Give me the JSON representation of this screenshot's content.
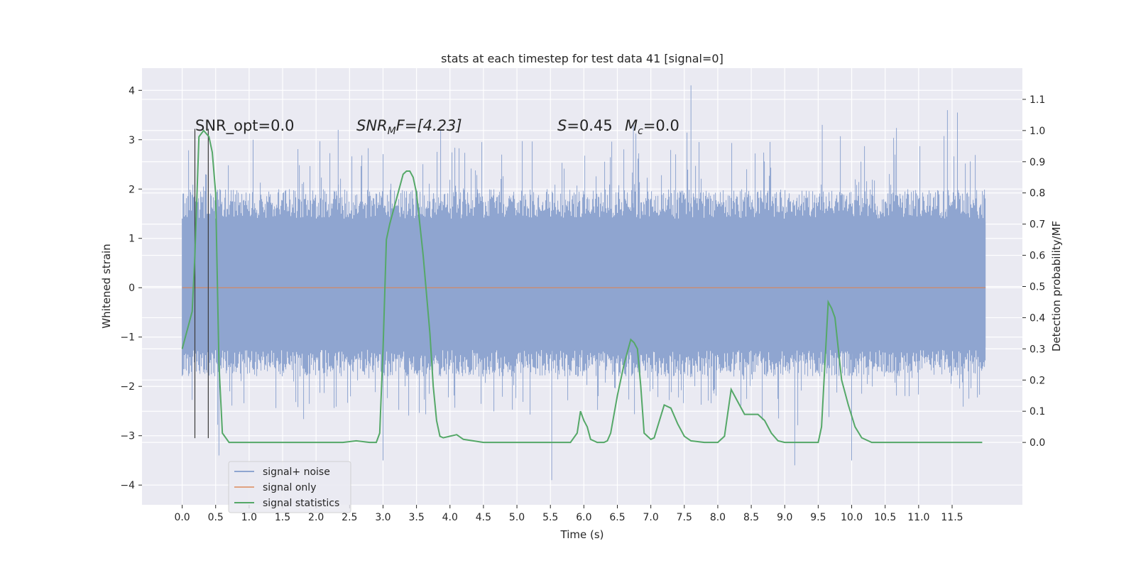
{
  "chart_data": {
    "type": "line",
    "title": "stats at each timestep for test data 41 [signal=0]",
    "xlabel": "Time (s)",
    "ylabel": "Whitened strain",
    "ylabel_right": "Detection probability/MF",
    "xlim": [
      -0.6,
      12.55
    ],
    "ylim": [
      -4.4,
      4.45
    ],
    "ylim_right": [
      -0.2,
      1.2
    ],
    "x_ticks": [
      "0.0",
      "0.5",
      "1.0",
      "1.5",
      "2.0",
      "2.5",
      "3.0",
      "3.5",
      "4.0",
      "4.5",
      "5.0",
      "5.5",
      "6.0",
      "6.5",
      "7.0",
      "7.5",
      "8.0",
      "8.5",
      "9.0",
      "9.5",
      "10.0",
      "10.5",
      "11.0",
      "11.5"
    ],
    "y_ticks": [
      "−4",
      "−3",
      "−2",
      "−1",
      "0",
      "1",
      "2",
      "3",
      "4"
    ],
    "y_ticks_right": [
      "0.0",
      "0.1",
      "0.2",
      "0.3",
      "0.4",
      "0.5",
      "0.6",
      "0.7",
      "0.8",
      "0.9",
      "1.0",
      "1.1"
    ],
    "grid": true,
    "legend_position": "lower-left",
    "annotations": {
      "snr_opt": "SNR_opt=0.0",
      "snr_mf_main": "SNR",
      "snr_mf_sub": "M",
      "snr_mf_rest": "F=[4.23]",
      "s_main": "S",
      "s_rest": "=0.45",
      "mc_main": "M",
      "mc_sub": "c",
      "mc_rest": "=0.0"
    },
    "vertical_lines_x": [
      0.19,
      0.39
    ],
    "vertical_lines_range": [
      -3.05,
      3.22
    ],
    "series": [
      {
        "name": "signal+ noise",
        "color": "#8fa5d0",
        "x_range": [
          0.0,
          12.0
        ],
        "band_upper": 2.0,
        "band_lower": -1.8,
        "note_spikes": "dense noise, peaks up to 4.1 at t=7.6 and down to -3.9 at t=5.5"
      },
      {
        "name": "signal only",
        "color": "#dd8452",
        "x": [
          0.0,
          12.0
        ],
        "y": [
          0.0,
          0.0
        ]
      },
      {
        "name": "signal statistics",
        "color": "#55a868",
        "axis": "right",
        "x": [
          0.0,
          0.1,
          0.15,
          0.19,
          0.25,
          0.32,
          0.4,
          0.45,
          0.5,
          0.55,
          0.6,
          0.7,
          1.0,
          2.0,
          2.4,
          2.6,
          2.8,
          2.9,
          2.95,
          3.0,
          3.05,
          3.1,
          3.2,
          3.3,
          3.35,
          3.4,
          3.45,
          3.5,
          3.55,
          3.6,
          3.7,
          3.75,
          3.8,
          3.85,
          3.9,
          4.0,
          4.1,
          4.2,
          4.5,
          5.0,
          5.5,
          5.8,
          5.9,
          5.95,
          6.0,
          6.05,
          6.1,
          6.2,
          6.3,
          6.35,
          6.4,
          6.5,
          6.6,
          6.7,
          6.75,
          6.8,
          6.85,
          6.9,
          7.0,
          7.05,
          7.1,
          7.2,
          7.3,
          7.4,
          7.5,
          7.6,
          7.8,
          8.0,
          8.1,
          8.2,
          8.3,
          8.4,
          8.5,
          8.6,
          8.7,
          8.8,
          8.9,
          9.0,
          9.5,
          9.55,
          9.6,
          9.65,
          9.7,
          9.75,
          9.85,
          9.95,
          10.05,
          10.15,
          10.3,
          10.5,
          11.0,
          11.5,
          11.95
        ],
        "y": [
          0.3,
          0.38,
          0.42,
          0.6,
          0.98,
          1.0,
          0.98,
          0.93,
          0.8,
          0.25,
          0.03,
          0.0,
          0.0,
          0.0,
          0.0,
          0.005,
          0.0,
          0.0,
          0.03,
          0.3,
          0.65,
          0.7,
          0.78,
          0.86,
          0.87,
          0.87,
          0.85,
          0.8,
          0.7,
          0.6,
          0.35,
          0.18,
          0.07,
          0.02,
          0.015,
          0.02,
          0.025,
          0.01,
          0.0,
          0.0,
          0.0,
          0.0,
          0.03,
          0.1,
          0.07,
          0.05,
          0.01,
          0.0,
          0.0,
          0.005,
          0.03,
          0.15,
          0.25,
          0.33,
          0.32,
          0.3,
          0.18,
          0.03,
          0.01,
          0.015,
          0.05,
          0.12,
          0.11,
          0.06,
          0.02,
          0.005,
          0.0,
          0.0,
          0.02,
          0.17,
          0.13,
          0.09,
          0.09,
          0.09,
          0.07,
          0.03,
          0.005,
          0.0,
          0.0,
          0.05,
          0.25,
          0.45,
          0.43,
          0.4,
          0.2,
          0.12,
          0.05,
          0.015,
          0.0,
          0.0,
          0.0,
          0.0,
          0.0
        ]
      }
    ]
  }
}
